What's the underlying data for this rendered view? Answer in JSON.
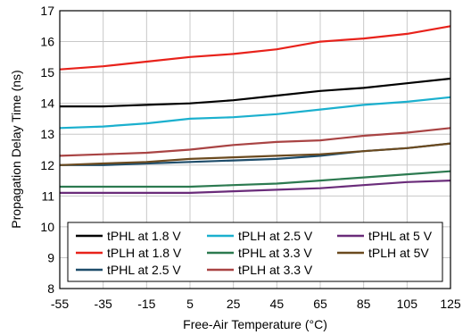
{
  "chart_data": {
    "type": "line",
    "xlabel": "Free-Air Temperature (°C)",
    "ylabel": "Propagation Delay Time (ns)",
    "xlim": [
      -55,
      125
    ],
    "ylim": [
      8,
      17
    ],
    "x_ticks": [
      "-55",
      "-35",
      "-15",
      "5",
      "25",
      "45",
      "65",
      "85",
      "105",
      "125"
    ],
    "y_ticks": [
      "8",
      "9",
      "10",
      "11",
      "12",
      "13",
      "14",
      "15",
      "16",
      "17"
    ],
    "grid": true,
    "legend_position": "bottom-center",
    "x": [
      -55,
      -35,
      -15,
      5,
      25,
      45,
      65,
      85,
      105,
      125
    ],
    "series": [
      {
        "name": "tPHL at 1.8 V",
        "color": "#000000",
        "values": [
          13.9,
          13.9,
          13.95,
          14.0,
          14.1,
          14.25,
          14.4,
          14.5,
          14.65,
          14.8
        ]
      },
      {
        "name": "tPLH at 1.8 V",
        "color": "#e8221b",
        "values": [
          15.1,
          15.2,
          15.35,
          15.5,
          15.6,
          15.75,
          16.0,
          16.1,
          16.25,
          16.5
        ]
      },
      {
        "name": "tPHL at 2.5 V",
        "color": "#1e4d6b",
        "values": [
          12.0,
          12.0,
          12.05,
          12.1,
          12.15,
          12.2,
          12.3,
          12.45,
          12.55,
          12.7
        ]
      },
      {
        "name": "tPLH at 2.5 V",
        "color": "#1bb0ce",
        "values": [
          13.2,
          13.25,
          13.35,
          13.5,
          13.55,
          13.65,
          13.8,
          13.95,
          14.05,
          14.2
        ]
      },
      {
        "name": "tPHL at 3.3 V",
        "color": "#2c7a50",
        "values": [
          11.3,
          11.3,
          11.3,
          11.3,
          11.35,
          11.4,
          11.5,
          11.6,
          11.7,
          11.8
        ]
      },
      {
        "name": "tPLH at 3.3 V",
        "color": "#a94444",
        "values": [
          12.3,
          12.35,
          12.4,
          12.5,
          12.65,
          12.75,
          12.8,
          12.95,
          13.05,
          13.2
        ]
      },
      {
        "name": "tPHL at 5 V",
        "color": "#6a2c7a",
        "values": [
          11.1,
          11.1,
          11.1,
          11.1,
          11.15,
          11.2,
          11.25,
          11.35,
          11.45,
          11.5
        ]
      },
      {
        "name": "tPLH at 5V",
        "color": "#6b4a1f",
        "values": [
          12.0,
          12.05,
          12.1,
          12.2,
          12.25,
          12.3,
          12.35,
          12.45,
          12.55,
          12.7
        ]
      }
    ]
  }
}
